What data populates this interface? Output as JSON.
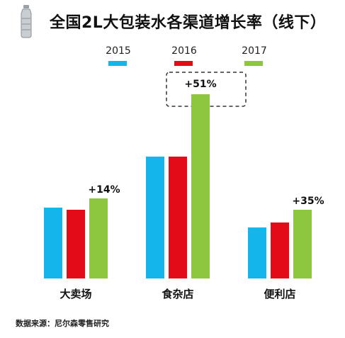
{
  "title": "全国2L大包装水各渠道增长率（线下）",
  "source": "数据来源：尼尔森零售研究",
  "chart_data": {
    "type": "bar",
    "categories": [
      "大卖场",
      "食杂店",
      "便利店"
    ],
    "series": [
      {
        "name": "2015",
        "color": "#13b5ea",
        "values": [
          100,
          172,
          72
        ]
      },
      {
        "name": "2016",
        "color": "#e30b17",
        "values": [
          97,
          172,
          79
        ]
      },
      {
        "name": "2017",
        "color": "#8dc63f",
        "values": [
          113,
          260,
          97
        ]
      }
    ],
    "annotations": [
      "+14%",
      "+51%",
      "+35%"
    ],
    "highlight_category": "食杂店",
    "ylim": [
      0,
      280
    ],
    "grid": false,
    "legend": "top"
  }
}
